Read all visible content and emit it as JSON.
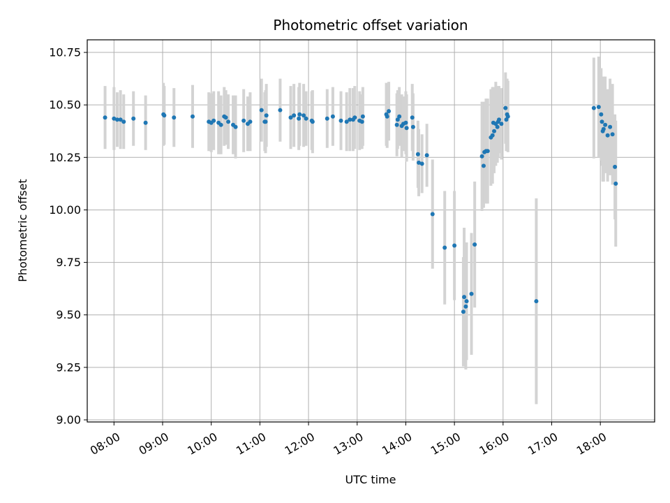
{
  "chart_data": {
    "type": "scatter",
    "title": "Photometric offset variation",
    "xlabel": "UTC time",
    "ylabel": "Photometric offset",
    "grid": true,
    "xlim": [
      "07:27",
      "19:07"
    ],
    "ylim": [
      8.99,
      10.81
    ],
    "x_ticks": [
      "08:00",
      "09:00",
      "10:00",
      "11:00",
      "12:00",
      "13:00",
      "14:00",
      "15:00",
      "16:00",
      "17:00",
      "18:00"
    ],
    "y_ticks": [
      "9.00",
      "9.25",
      "9.50",
      "9.75",
      "10.00",
      "10.25",
      "10.50",
      "10.75"
    ],
    "colors": {
      "points": "#1f77b4",
      "errorbars": "#d3d3d3",
      "grid": "#b0b0b0"
    },
    "series": [
      {
        "points": [
          {
            "t": "07:49",
            "y": 10.44,
            "err": 0.15
          },
          {
            "t": "08:00",
            "y": 10.435,
            "err": 0.15
          },
          {
            "t": "08:04",
            "y": 10.43,
            "err": 0.13
          },
          {
            "t": "08:08",
            "y": 10.43,
            "err": 0.14
          },
          {
            "t": "08:12",
            "y": 10.42,
            "err": 0.13
          },
          {
            "t": "08:24",
            "y": 10.435,
            "err": 0.13
          },
          {
            "t": "08:39",
            "y": 10.415,
            "err": 0.13
          },
          {
            "t": "09:01",
            "y": 10.455,
            "err": 0.15
          },
          {
            "t": "09:02",
            "y": 10.45,
            "err": 0.14
          },
          {
            "t": "09:14",
            "y": 10.44,
            "err": 0.14
          },
          {
            "t": "09:37",
            "y": 10.445,
            "err": 0.15
          },
          {
            "t": "09:57",
            "y": 10.42,
            "err": 0.14
          },
          {
            "t": "10:00",
            "y": 10.415,
            "err": 0.14
          },
          {
            "t": "10:03",
            "y": 10.425,
            "err": 0.14
          },
          {
            "t": "10:09",
            "y": 10.415,
            "err": 0.15
          },
          {
            "t": "10:12",
            "y": 10.405,
            "err": 0.14
          },
          {
            "t": "10:16",
            "y": 10.445,
            "err": 0.14
          },
          {
            "t": "10:18",
            "y": 10.44,
            "err": 0.13
          },
          {
            "t": "10:21",
            "y": 10.42,
            "err": 0.13
          },
          {
            "t": "10:27",
            "y": 10.405,
            "err": 0.14
          },
          {
            "t": "10:30",
            "y": 10.395,
            "err": 0.15
          },
          {
            "t": "10:40",
            "y": 10.425,
            "err": 0.15
          },
          {
            "t": "10:45",
            "y": 10.41,
            "err": 0.13
          },
          {
            "t": "10:48",
            "y": 10.42,
            "err": 0.14
          },
          {
            "t": "11:02",
            "y": 10.475,
            "err": 0.15
          },
          {
            "t": "11:06",
            "y": 10.42,
            "err": 0.14
          },
          {
            "t": "11:07",
            "y": 10.42,
            "err": 0.15
          },
          {
            "t": "11:08",
            "y": 10.45,
            "err": 0.15
          },
          {
            "t": "11:25",
            "y": 10.475,
            "err": 0.15
          },
          {
            "t": "11:38",
            "y": 10.44,
            "err": 0.15
          },
          {
            "t": "11:42",
            "y": 10.45,
            "err": 0.15
          },
          {
            "t": "11:48",
            "y": 10.435,
            "err": 0.15
          },
          {
            "t": "11:49",
            "y": 10.455,
            "err": 0.15
          },
          {
            "t": "11:54",
            "y": 10.45,
            "err": 0.15
          },
          {
            "t": "11:57",
            "y": 10.435,
            "err": 0.13
          },
          {
            "t": "12:04",
            "y": 10.425,
            "err": 0.14
          },
          {
            "t": "12:05",
            "y": 10.42,
            "err": 0.15
          },
          {
            "t": "12:23",
            "y": 10.435,
            "err": 0.14
          },
          {
            "t": "12:30",
            "y": 10.445,
            "err": 0.14
          },
          {
            "t": "12:40",
            "y": 10.425,
            "err": 0.14
          },
          {
            "t": "12:47",
            "y": 10.42,
            "err": 0.14
          },
          {
            "t": "12:51",
            "y": 10.43,
            "err": 0.15
          },
          {
            "t": "12:55",
            "y": 10.43,
            "err": 0.15
          },
          {
            "t": "12:57",
            "y": 10.44,
            "err": 0.15
          },
          {
            "t": "13:03",
            "y": 10.425,
            "err": 0.14
          },
          {
            "t": "13:06",
            "y": 10.42,
            "err": 0.13
          },
          {
            "t": "13:07",
            "y": 10.445,
            "err": 0.14
          },
          {
            "t": "13:36",
            "y": 10.455,
            "err": 0.15
          },
          {
            "t": "13:37",
            "y": 10.445,
            "err": 0.15
          },
          {
            "t": "13:39",
            "y": 10.47,
            "err": 0.14
          },
          {
            "t": "13:49",
            "y": 10.405,
            "err": 0.15
          },
          {
            "t": "13:50",
            "y": 10.43,
            "err": 0.14
          },
          {
            "t": "13:52",
            "y": 10.445,
            "err": 0.14
          },
          {
            "t": "13:55",
            "y": 10.4,
            "err": 0.15
          },
          {
            "t": "13:57",
            "y": 10.41,
            "err": 0.13
          },
          {
            "t": "14:00",
            "y": 10.415,
            "err": 0.15
          },
          {
            "t": "14:01",
            "y": 10.39,
            "err": 0.16
          },
          {
            "t": "14:08",
            "y": 10.44,
            "err": 0.16
          },
          {
            "t": "14:09",
            "y": 10.395,
            "err": 0.16
          },
          {
            "t": "14:15",
            "y": 10.265,
            "err": 0.16
          },
          {
            "t": "14:16",
            "y": 10.225,
            "err": 0.16
          },
          {
            "t": "14:20",
            "y": 10.22,
            "err": 0.14
          },
          {
            "t": "14:26",
            "y": 10.26,
            "err": 0.15
          },
          {
            "t": "14:33",
            "y": 9.98,
            "err": 0.26
          },
          {
            "t": "14:48",
            "y": 9.82,
            "err": 0.27
          },
          {
            "t": "15:00",
            "y": 9.83,
            "err": 0.26
          },
          {
            "t": "15:11",
            "y": 9.515,
            "err": 0.26
          },
          {
            "t": "15:12",
            "y": 9.585,
            "err": 0.33
          },
          {
            "t": "15:14",
            "y": 9.54,
            "err": 0.3
          },
          {
            "t": "15:15",
            "y": 9.565,
            "err": 0.28
          },
          {
            "t": "15:21",
            "y": 9.6,
            "err": 0.29
          },
          {
            "t": "15:25",
            "y": 9.835,
            "err": 0.3
          },
          {
            "t": "15:34",
            "y": 10.255,
            "err": 0.26
          },
          {
            "t": "15:36",
            "y": 10.21,
            "err": 0.2
          },
          {
            "t": "15:37",
            "y": 10.275,
            "err": 0.24
          },
          {
            "t": "15:39",
            "y": 10.28,
            "err": 0.25
          },
          {
            "t": "15:41",
            "y": 10.28,
            "err": 0.25
          },
          {
            "t": "15:45",
            "y": 10.345,
            "err": 0.23
          },
          {
            "t": "15:47",
            "y": 10.355,
            "err": 0.23
          },
          {
            "t": "15:48",
            "y": 10.415,
            "err": 0.17
          },
          {
            "t": "15:49",
            "y": 10.375,
            "err": 0.2
          },
          {
            "t": "15:51",
            "y": 10.41,
            "err": 0.2
          },
          {
            "t": "15:53",
            "y": 10.395,
            "err": 0.17
          },
          {
            "t": "15:54",
            "y": 10.42,
            "err": 0.17
          },
          {
            "t": "15:55",
            "y": 10.43,
            "err": 0.16
          },
          {
            "t": "15:58",
            "y": 10.41,
            "err": 0.17
          },
          {
            "t": "16:03",
            "y": 10.485,
            "err": 0.17
          },
          {
            "t": "16:04",
            "y": 10.43,
            "err": 0.15
          },
          {
            "t": "16:05",
            "y": 10.455,
            "err": 0.17
          },
          {
            "t": "16:06",
            "y": 10.445,
            "err": 0.17
          },
          {
            "t": "16:41",
            "y": 9.565,
            "err": 0.49
          },
          {
            "t": "17:52",
            "y": 10.485,
            "err": 0.24
          },
          {
            "t": "17:58",
            "y": 10.49,
            "err": 0.24
          },
          {
            "t": "18:01",
            "y": 10.455,
            "err": 0.22
          },
          {
            "t": "18:02",
            "y": 10.42,
            "err": 0.21
          },
          {
            "t": "18:03",
            "y": 10.375,
            "err": 0.24
          },
          {
            "t": "18:04",
            "y": 10.385,
            "err": 0.25
          },
          {
            "t": "18:06",
            "y": 10.405,
            "err": 0.23
          },
          {
            "t": "18:09",
            "y": 10.355,
            "err": 0.22
          },
          {
            "t": "18:12",
            "y": 10.395,
            "err": 0.23
          },
          {
            "t": "18:15",
            "y": 10.36,
            "err": 0.24
          },
          {
            "t": "18:18",
            "y": 10.205,
            "err": 0.25
          },
          {
            "t": "18:19",
            "y": 10.125,
            "err": 0.3
          }
        ]
      }
    ]
  }
}
